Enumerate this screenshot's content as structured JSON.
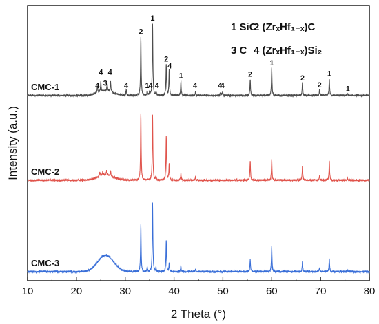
{
  "chart_data": {
    "type": "line",
    "xlabel": "2 Theta (°)",
    "ylabel": "Intensity (a.u.)",
    "xlim": [
      10,
      80
    ],
    "x_ticks": [
      "10",
      "20",
      "30",
      "40",
      "50",
      "60",
      "70",
      "80"
    ],
    "grid": false,
    "legend_position": "top-right",
    "legend": [
      {
        "id": "1",
        "phase": "SiC"
      },
      {
        "id": "2",
        "phase": "(ZrₓHf₁₋ₓ)C"
      },
      {
        "id": "3",
        "phase": "C"
      },
      {
        "id": "4",
        "phase": "(ZrₓHf₁₋ₓ)Si₂"
      }
    ],
    "series": [
      {
        "name": "CMC-1",
        "color": "#4d4d4d",
        "offset": 2.35,
        "noise": 0.012,
        "hump": {
          "center": 26.0,
          "width": 1.6,
          "height": 0.06
        },
        "peaks": [
          [
            24.3,
            0.1
          ],
          [
            25.0,
            0.13
          ],
          [
            26.3,
            0.1
          ],
          [
            27.0,
            0.13
          ],
          [
            30.2,
            0.08
          ],
          [
            33.2,
            0.78
          ],
          [
            34.5,
            0.05
          ],
          [
            35.0,
            0.05
          ],
          [
            35.6,
            0.95
          ],
          [
            36.3,
            0.05
          ],
          [
            38.4,
            0.42
          ],
          [
            39.0,
            0.33
          ],
          [
            41.4,
            0.19
          ],
          [
            44.4,
            0.05
          ],
          [
            49.5,
            0.04
          ],
          [
            49.9,
            0.04
          ],
          [
            55.6,
            0.21
          ],
          [
            60.0,
            0.37
          ],
          [
            66.3,
            0.17
          ],
          [
            69.8,
            0.08
          ],
          [
            71.8,
            0.22
          ],
          [
            75.5,
            0.03
          ]
        ]
      },
      {
        "name": "CMC-2",
        "color": "#e0544c",
        "offset": 1.22,
        "noise": 0.012,
        "hump": {
          "center": 26.0,
          "width": 1.6,
          "height": 0.07
        },
        "peaks": [
          [
            24.8,
            0.06
          ],
          [
            25.4,
            0.05
          ],
          [
            26.2,
            0.06
          ],
          [
            27.0,
            0.06
          ],
          [
            33.2,
            0.9
          ],
          [
            35.6,
            0.88
          ],
          [
            36.3,
            0.05
          ],
          [
            38.4,
            0.59
          ],
          [
            39.0,
            0.21
          ],
          [
            41.4,
            0.09
          ],
          [
            44.4,
            0.04
          ],
          [
            55.6,
            0.26
          ],
          [
            60.0,
            0.28
          ],
          [
            66.3,
            0.19
          ],
          [
            69.8,
            0.06
          ],
          [
            71.8,
            0.25
          ],
          [
            75.5,
            0.03
          ]
        ]
      },
      {
        "name": "CMC-3",
        "color": "#3a6fd8",
        "offset": 0.0,
        "noise": 0.012,
        "hump": {
          "center": 26.0,
          "width": 1.6,
          "height": 0.22
        },
        "peaks": [
          [
            33.2,
            0.62
          ],
          [
            34.5,
            0.06
          ],
          [
            35.6,
            0.92
          ],
          [
            36.3,
            0.05
          ],
          [
            38.4,
            0.41
          ],
          [
            39.0,
            0.11
          ],
          [
            41.4,
            0.08
          ],
          [
            44.4,
            0.03
          ],
          [
            55.6,
            0.16
          ],
          [
            60.0,
            0.34
          ],
          [
            66.3,
            0.13
          ],
          [
            69.8,
            0.05
          ],
          [
            71.8,
            0.17
          ],
          [
            75.5,
            0.02
          ]
        ]
      }
    ],
    "peak_annotations": [
      {
        "label": "4",
        "x": 24.3,
        "y": 2.45
      },
      {
        "label": "4",
        "x": 25.0,
        "y": 2.63
      },
      {
        "label": "3",
        "x": 25.9,
        "y": 2.48
      },
      {
        "label": "4",
        "x": 26.9,
        "y": 2.63
      },
      {
        "label": "4",
        "x": 30.2,
        "y": 2.45
      },
      {
        "label": "2",
        "x": 33.2,
        "y": 3.17
      },
      {
        "label": "1",
        "x": 34.5,
        "y": 2.45
      },
      {
        "label": "4",
        "x": 35.2,
        "y": 2.45
      },
      {
        "label": "1",
        "x": 35.6,
        "y": 3.35
      },
      {
        "label": "4",
        "x": 36.5,
        "y": 2.45
      },
      {
        "label": "2",
        "x": 38.4,
        "y": 2.8
      },
      {
        "label": "4",
        "x": 39.1,
        "y": 2.71
      },
      {
        "label": "1",
        "x": 41.4,
        "y": 2.58
      },
      {
        "label": "4",
        "x": 44.3,
        "y": 2.45
      },
      {
        "label": "4",
        "x": 49.4,
        "y": 2.45
      },
      {
        "label": "4",
        "x": 49.9,
        "y": 2.45
      },
      {
        "label": "2",
        "x": 55.6,
        "y": 2.6
      },
      {
        "label": "1",
        "x": 60.0,
        "y": 2.75
      },
      {
        "label": "2",
        "x": 66.3,
        "y": 2.55
      },
      {
        "label": "2",
        "x": 69.8,
        "y": 2.46
      },
      {
        "label": "1",
        "x": 71.8,
        "y": 2.61
      },
      {
        "label": "1",
        "x": 75.6,
        "y": 2.41
      }
    ]
  }
}
